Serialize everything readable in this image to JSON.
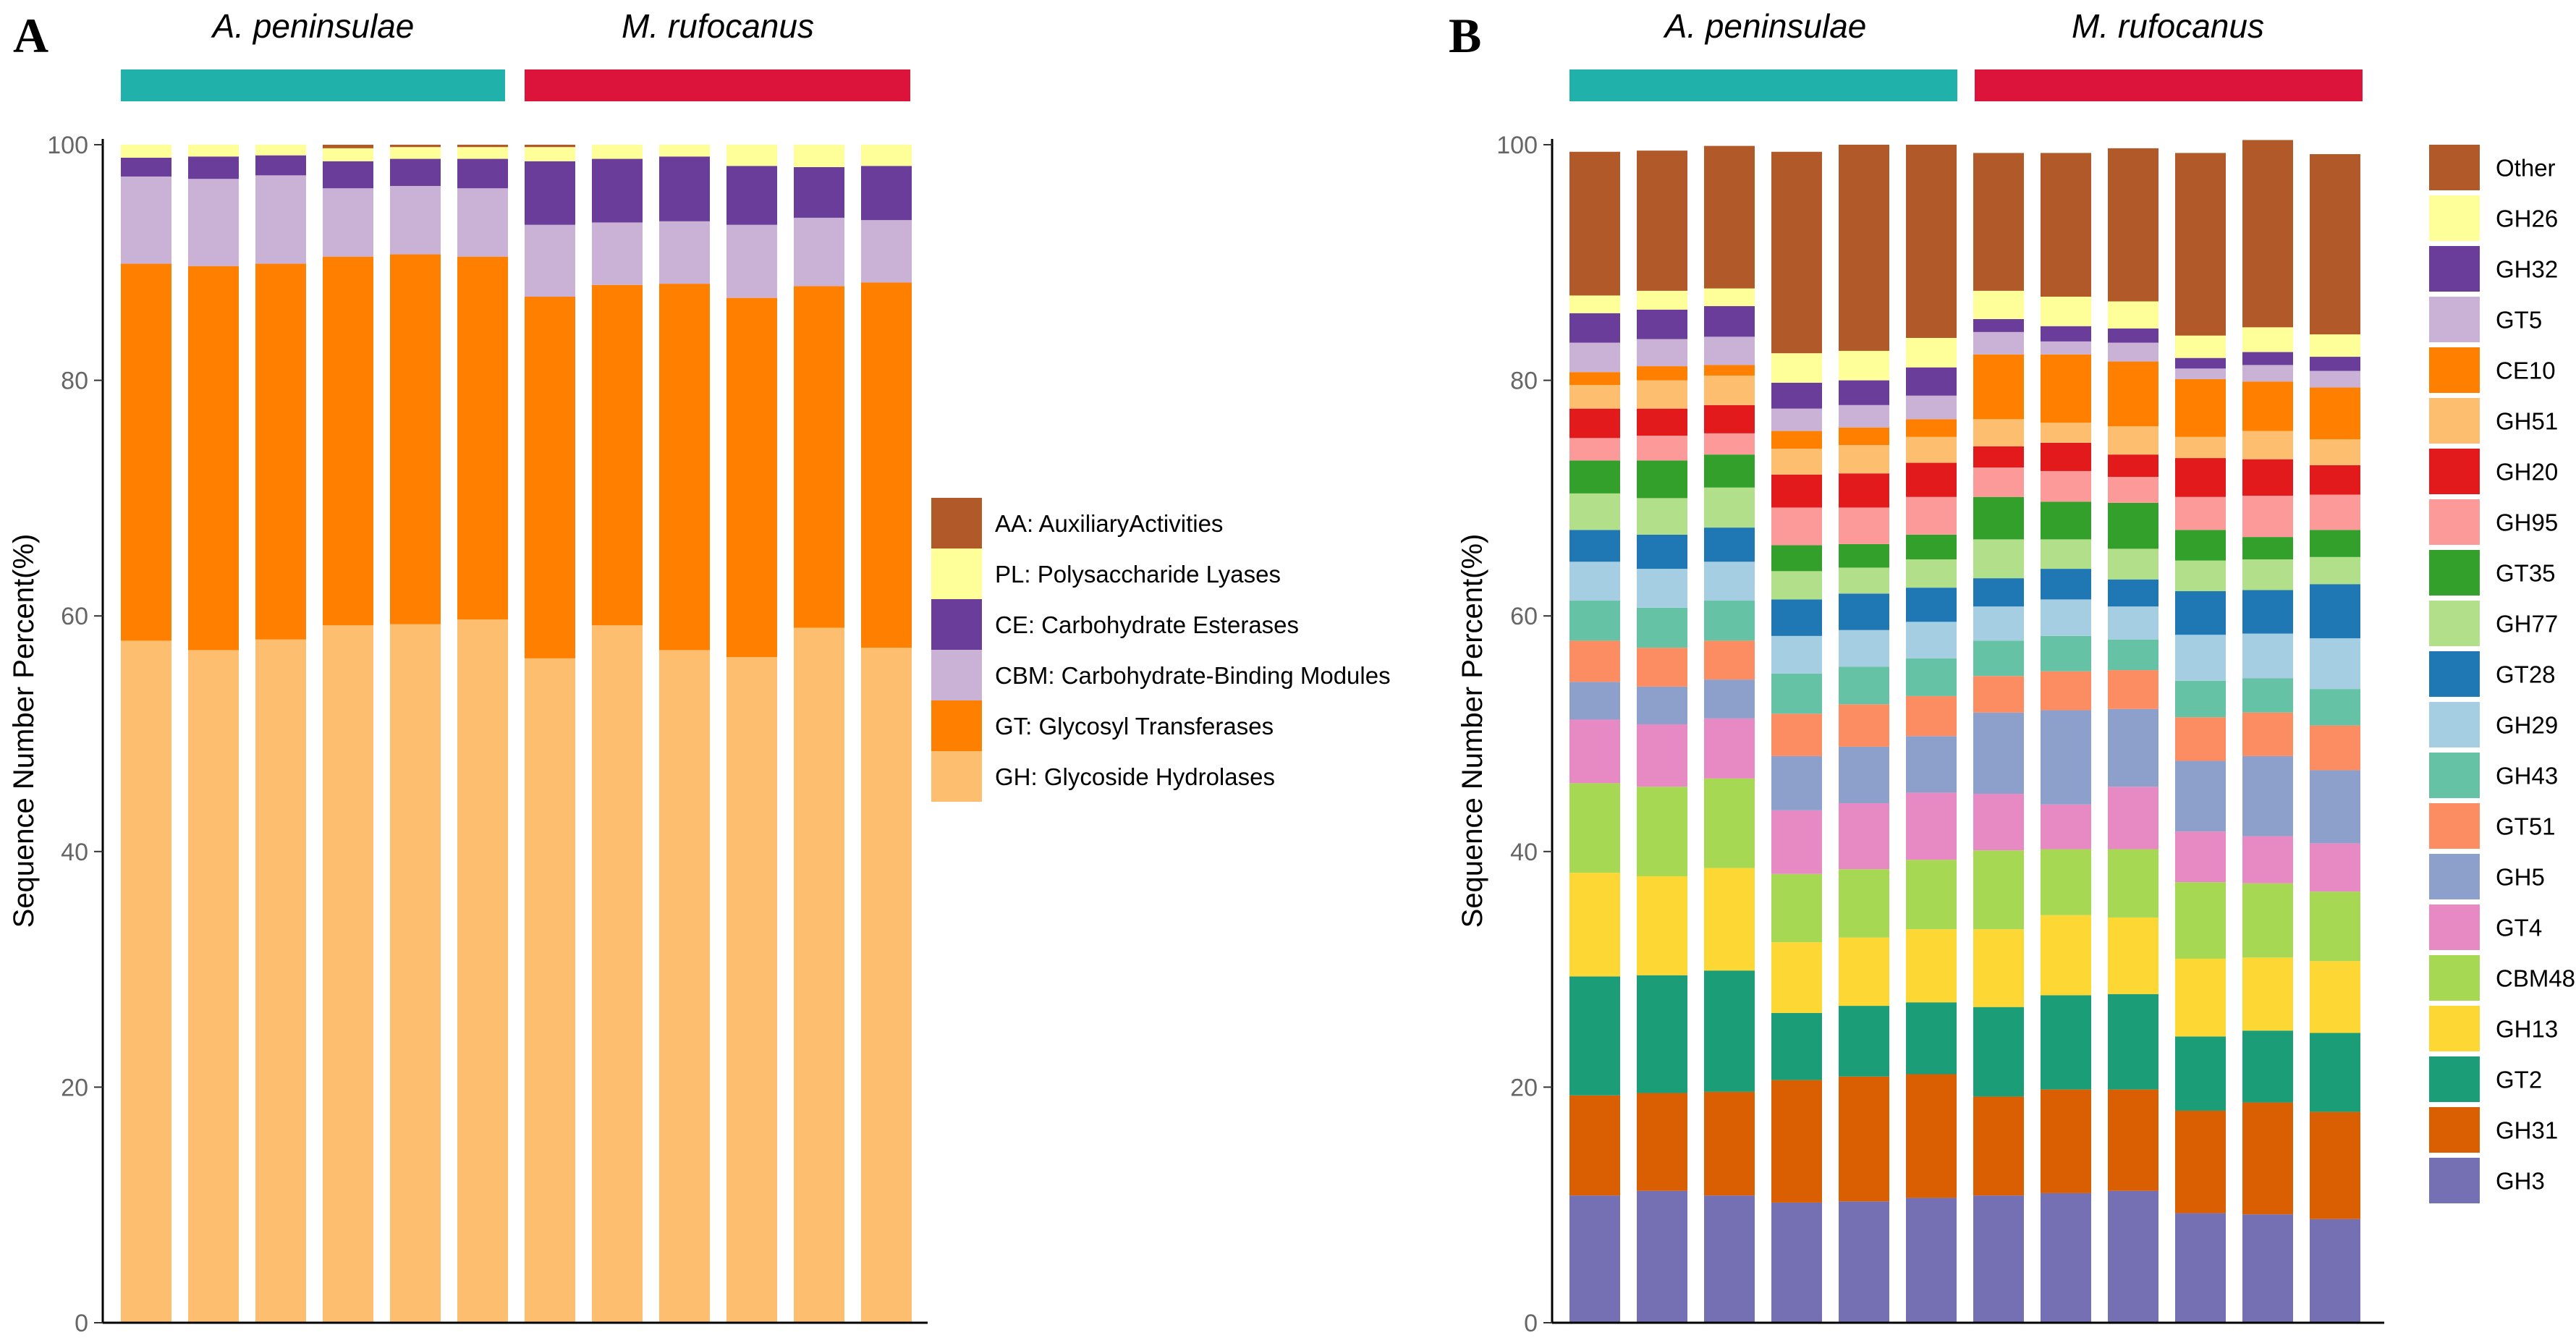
{
  "panels": [
    {
      "id": "A",
      "letter": "A",
      "ylabel": "Sequence Number Percent(%)",
      "groups": [
        {
          "label": "A. peninsulae",
          "color": "#20B2AA"
        },
        {
          "label": "M. rufocanus",
          "color": "#DC143C"
        }
      ]
    },
    {
      "id": "B",
      "letter": "B",
      "ylabel": "Sequence Number Percent(%)",
      "groups": [
        {
          "label": "A. peninsulae",
          "color": "#20B2AA"
        },
        {
          "label": "M. rufocanus",
          "color": "#DC143C"
        }
      ]
    }
  ],
  "chart_data": [
    {
      "type": "bar",
      "stacked": true,
      "ylabel": "Sequence Number Percent(%)",
      "ylim": [
        0,
        100
      ],
      "yticks": [
        "0",
        "20",
        "40",
        "60",
        "80",
        "100"
      ],
      "grid": false,
      "legend_position": "right",
      "n_bars": 12,
      "series": [
        {
          "name": "GH: Glycoside Hydrolases",
          "color": "#FDBF6F",
          "values": [
            57.9,
            57.1,
            58.0,
            59.2,
            59.3,
            59.7,
            56.4,
            59.2,
            57.1,
            56.5,
            59.0,
            57.3
          ]
        },
        {
          "name": "GT: Glycosyl Transferases",
          "color": "#FF7F00",
          "values": [
            32.0,
            32.6,
            31.9,
            31.3,
            31.4,
            30.8,
            30.7,
            28.9,
            31.1,
            30.5,
            29.0,
            31.0
          ]
        },
        {
          "name": "CBM: Carbohydrate-Binding Modules",
          "color": "#CAB2D6",
          "values": [
            7.4,
            7.4,
            7.5,
            5.8,
            5.8,
            5.8,
            6.1,
            5.3,
            5.3,
            6.2,
            5.8,
            5.3
          ]
        },
        {
          "name": "CE: Carbohydrate Esterases",
          "color": "#6A3D9A",
          "values": [
            1.6,
            1.9,
            1.7,
            2.3,
            2.3,
            2.5,
            5.4,
            5.4,
            5.5,
            5.0,
            4.3,
            4.6
          ]
        },
        {
          "name": "PL: Polysaccharide Lyases",
          "color": "#FFFF99",
          "values": [
            1.1,
            1.0,
            0.9,
            1.1,
            1.0,
            1.0,
            1.2,
            1.2,
            1.0,
            1.8,
            1.9,
            1.8
          ]
        },
        {
          "name": "AA: AuxiliaryActivities",
          "color": "#B15928",
          "values": [
            0.0,
            0.0,
            0.0,
            0.3,
            0.2,
            0.2,
            0.2,
            0.0,
            0.0,
            0.0,
            0.0,
            0.0
          ]
        }
      ]
    },
    {
      "type": "bar",
      "stacked": true,
      "ylabel": "Sequence Number Percent(%)",
      "ylim": [
        0,
        100
      ],
      "yticks": [
        "0",
        "20",
        "40",
        "60",
        "80",
        "100"
      ],
      "grid": false,
      "legend_position": "right",
      "n_bars": 12,
      "series": [
        {
          "name": "GH3",
          "color": "#7570B3",
          "values": [
            10.8,
            11.2,
            10.8,
            10.2,
            10.3,
            10.6,
            10.8,
            11.0,
            11.2,
            9.3,
            9.2,
            8.8
          ]
        },
        {
          "name": "GH31",
          "color": "#D95F02",
          "values": [
            8.5,
            8.3,
            8.8,
            10.4,
            10.6,
            10.5,
            8.4,
            8.8,
            8.6,
            8.7,
            9.5,
            9.1
          ]
        },
        {
          "name": "GT2",
          "color": "#1B9E77",
          "values": [
            10.1,
            10.0,
            10.3,
            5.7,
            6.0,
            6.1,
            7.6,
            8.0,
            8.1,
            6.3,
            6.1,
            6.7
          ]
        },
        {
          "name": "GH13",
          "color": "#FDD835",
          "values": [
            8.8,
            8.4,
            8.7,
            6.0,
            5.8,
            6.2,
            6.6,
            6.8,
            6.5,
            6.6,
            6.2,
            6.1
          ]
        },
        {
          "name": "CBM48",
          "color": "#A6D854",
          "values": [
            7.6,
            7.6,
            7.6,
            5.8,
            5.8,
            5.9,
            6.7,
            5.6,
            5.8,
            6.5,
            6.3,
            5.9
          ]
        },
        {
          "name": "GT4",
          "color": "#E78AC3",
          "values": [
            5.4,
            5.3,
            5.1,
            5.4,
            5.6,
            5.7,
            4.8,
            3.8,
            5.3,
            4.3,
            4.0,
            4.1
          ]
        },
        {
          "name": "GH5",
          "color": "#8DA0CB",
          "values": [
            3.2,
            3.2,
            3.3,
            4.6,
            4.8,
            4.8,
            6.9,
            8.0,
            6.6,
            6.0,
            6.8,
            6.2
          ]
        },
        {
          "name": "GT51",
          "color": "#FC8D62",
          "values": [
            3.5,
            3.3,
            3.3,
            3.6,
            3.6,
            3.4,
            3.1,
            3.3,
            3.3,
            3.7,
            3.7,
            3.8
          ]
        },
        {
          "name": "GH43",
          "color": "#66C2A5",
          "values": [
            3.4,
            3.4,
            3.4,
            3.4,
            3.2,
            3.2,
            3.0,
            3.0,
            2.6,
            3.1,
            2.9,
            3.1
          ]
        },
        {
          "name": "GH29",
          "color": "#A6CEE3",
          "values": [
            3.3,
            3.3,
            3.3,
            3.2,
            3.1,
            3.1,
            2.9,
            3.1,
            2.8,
            3.9,
            3.8,
            4.3
          ]
        },
        {
          "name": "GT28",
          "color": "#1F78B4",
          "values": [
            2.7,
            2.9,
            2.9,
            3.1,
            3.1,
            2.9,
            2.4,
            2.6,
            2.3,
            3.7,
            3.7,
            4.6
          ]
        },
        {
          "name": "GH77",
          "color": "#B2DF8A",
          "values": [
            3.1,
            3.1,
            3.4,
            2.4,
            2.2,
            2.4,
            3.3,
            2.5,
            2.6,
            2.6,
            2.6,
            2.3
          ]
        },
        {
          "name": "GT35",
          "color": "#33A02C",
          "values": [
            2.8,
            3.2,
            2.8,
            2.2,
            2.0,
            2.1,
            3.6,
            3.2,
            3.9,
            2.6,
            1.9,
            2.3
          ]
        },
        {
          "name": "GH95",
          "color": "#FB9A99",
          "values": [
            1.9,
            2.1,
            1.8,
            3.2,
            3.1,
            3.2,
            2.5,
            2.6,
            2.2,
            2.8,
            3.5,
            3.0
          ]
        },
        {
          "name": "GH20",
          "color": "#E31A1C",
          "values": [
            2.5,
            2.3,
            2.4,
            2.8,
            2.9,
            2.9,
            1.8,
            2.4,
            1.9,
            3.3,
            3.1,
            2.5
          ]
        },
        {
          "name": "GH51",
          "color": "#FDBF6F",
          "values": [
            2.0,
            2.4,
            2.5,
            2.2,
            2.4,
            2.2,
            2.3,
            1.7,
            2.4,
            1.8,
            2.4,
            2.2
          ]
        },
        {
          "name": "CE10",
          "color": "#FF7F00",
          "values": [
            1.1,
            1.2,
            0.9,
            1.5,
            1.5,
            1.5,
            5.5,
            5.8,
            5.5,
            4.9,
            4.2,
            4.4
          ]
        },
        {
          "name": "GT5",
          "color": "#CAB2D6",
          "values": [
            2.5,
            2.3,
            2.4,
            1.9,
            1.9,
            2.0,
            1.9,
            1.1,
            1.6,
            0.9,
            1.4,
            1.4
          ]
        },
        {
          "name": "GH32",
          "color": "#6A3D9A",
          "values": [
            2.5,
            2.5,
            2.6,
            2.2,
            2.1,
            2.4,
            1.1,
            1.3,
            1.2,
            0.9,
            1.1,
            1.2
          ]
        },
        {
          "name": "GH26",
          "color": "#FFFF99",
          "values": [
            1.5,
            1.6,
            1.5,
            2.5,
            2.5,
            2.5,
            2.4,
            2.5,
            2.3,
            1.9,
            2.1,
            1.9
          ]
        },
        {
          "name": "Other",
          "color": "#B15928",
          "values": [
            12.2,
            11.9,
            12.1,
            17.1,
            17.5,
            16.4,
            11.7,
            12.2,
            13.0,
            15.5,
            15.9,
            15.3
          ]
        }
      ]
    }
  ]
}
